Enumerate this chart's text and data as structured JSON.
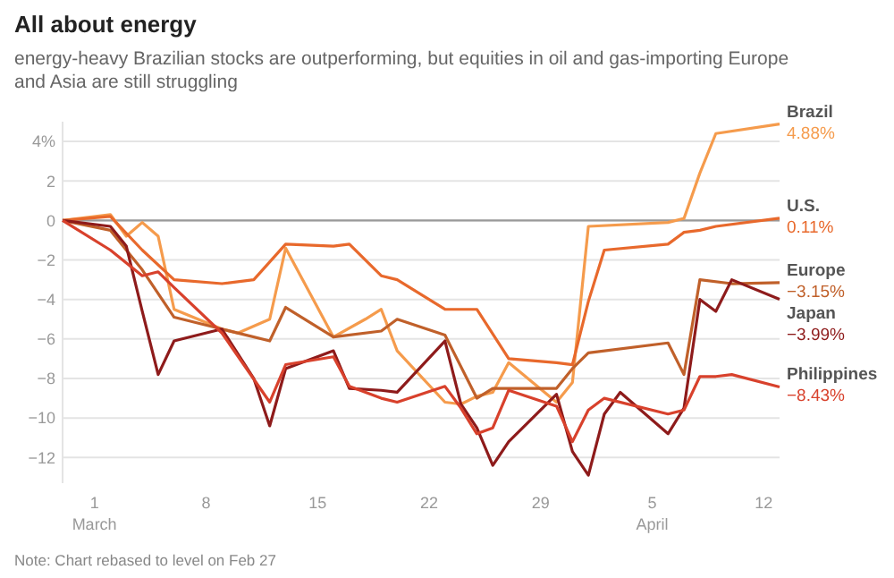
{
  "chart_data": {
    "type": "line",
    "title": "All about energy",
    "subtitle": "energy-heavy Brazilian stocks are outperforming, but equities in oil and gas-importing Europe and Asia are still struggling",
    "xlim": [
      "--02-27",
      "--04-13"
    ],
    "xticks": [
      {
        "value": "--03-01",
        "label": "1\nMarch"
      },
      {
        "value": "--03-08",
        "label": "8"
      },
      {
        "value": "--03-15",
        "label": "15"
      },
      {
        "value": "--03-22",
        "label": "22"
      },
      {
        "value": "--03-29",
        "label": "29"
      },
      {
        "value": "--04-05",
        "label": "5\nApril"
      },
      {
        "value": "--04-12",
        "label": "12"
      }
    ],
    "ylim": [
      -13.3,
      5
    ],
    "yticks": [
      {
        "value": 4,
        "label": "4%"
      },
      2,
      0,
      {
        "value": -2,
        "label": "−2"
      },
      {
        "value": -4,
        "label": "−4"
      },
      {
        "value": -6,
        "label": "−6"
      },
      {
        "value": -8,
        "label": "−8"
      },
      {
        "value": -10,
        "label": "−10"
      },
      {
        "value": -12,
        "label": "−12"
      }
    ],
    "grid": "y",
    "marker": "none",
    "line_style": "solid",
    "ref_lines": [
      {
        "axis": "y",
        "value": 0,
        "color": "#9a9a9a"
      }
    ],
    "annotations": [
      "Note: Chart rebased to level on Feb 27"
    ],
    "series": [
      {
        "name": "Brazil",
        "color": "#f59b4c",
        "x": [
          "--02-27",
          "--03-02",
          "--03-03",
          "--03-04",
          "--03-05",
          "--03-06",
          "--03-09",
          "--03-10",
          "--03-12",
          "--03-13",
          "--03-16",
          "--03-18",
          "--03-19",
          "--03-20",
          "--03-23",
          "--03-24",
          "--03-25",
          "--03-26",
          "--03-27",
          "--03-30",
          "--03-31",
          "--04-01",
          "--04-06",
          "--04-07",
          "--04-08",
          "--04-09",
          "--04-13"
        ],
        "values": [
          0,
          0.3,
          -0.8,
          -0.1,
          -0.8,
          -4.5,
          -5.5,
          -5.7,
          -5.0,
          -1.4,
          -5.9,
          -5.0,
          -4.5,
          -6.6,
          -9.2,
          -9.3,
          -8.9,
          -8.7,
          -7.2,
          -9.2,
          -8.2,
          -0.3,
          -0.1,
          0.1,
          2.4,
          4.4,
          4.88
        ],
        "value_labels": [
          null,
          null,
          null,
          null,
          null,
          null,
          null,
          null,
          null,
          null,
          null,
          null,
          null,
          null,
          null,
          null,
          null,
          null,
          null,
          null,
          null,
          null,
          null,
          null,
          null,
          null,
          "4.88%"
        ]
      },
      {
        "name": "U.S.",
        "color": "#e8692c",
        "x": [
          "--02-27",
          "--03-02",
          "--03-04",
          "--03-06",
          "--03-09",
          "--03-11",
          "--03-13",
          "--03-16",
          "--03-17",
          "--03-19",
          "--03-20",
          "--03-23",
          "--03-25",
          "--03-27",
          "--03-30",
          "--03-31",
          "--04-01",
          "--04-02",
          "--04-06",
          "--04-07",
          "--04-08",
          "--04-09",
          "--04-13"
        ],
        "values": [
          0,
          0.2,
          -1.5,
          -3.0,
          -3.2,
          -3.0,
          -1.2,
          -1.3,
          -1.2,
          -2.8,
          -3.0,
          -4.5,
          -4.5,
          -7.0,
          -7.2,
          -7.3,
          -4.1,
          -1.5,
          -1.2,
          -0.6,
          -0.5,
          -0.3,
          0.11
        ],
        "value_labels": [
          null,
          null,
          null,
          null,
          null,
          null,
          null,
          null,
          null,
          null,
          null,
          null,
          null,
          null,
          null,
          null,
          null,
          null,
          null,
          null,
          null,
          null,
          "0.11%"
        ]
      },
      {
        "name": "Europe",
        "color": "#c0602a",
        "x": [
          "--02-27",
          "--03-02",
          "--03-04",
          "--03-06",
          "--03-09",
          "--03-12",
          "--03-13",
          "--03-16",
          "--03-19",
          "--03-20",
          "--03-23",
          "--03-25",
          "--03-26",
          "--03-30",
          "--03-31",
          "--04-01",
          "--04-06",
          "--04-07",
          "--04-08",
          "--04-10",
          "--04-13"
        ],
        "values": [
          0,
          -0.5,
          -2.5,
          -4.9,
          -5.5,
          -6.1,
          -4.4,
          -5.9,
          -5.6,
          -5.0,
          -5.8,
          -9.0,
          -8.5,
          -8.5,
          -7.5,
          -6.7,
          -6.2,
          -7.8,
          -3.0,
          -3.2,
          -3.15
        ],
        "value_labels": [
          null,
          null,
          null,
          null,
          null,
          null,
          null,
          null,
          null,
          null,
          null,
          null,
          null,
          null,
          null,
          null,
          null,
          null,
          null,
          null,
          "−3.15%"
        ]
      },
      {
        "name": "Japan",
        "color": "#8e1b1b",
        "x": [
          "--02-27",
          "--03-02",
          "--03-03",
          "--03-04",
          "--03-05",
          "--03-06",
          "--03-09",
          "--03-11",
          "--03-12",
          "--03-13",
          "--03-16",
          "--03-17",
          "--03-19",
          "--03-20",
          "--03-23",
          "--03-24",
          "--03-25",
          "--03-26",
          "--03-27",
          "--03-30",
          "--03-31",
          "--04-01",
          "--04-02",
          "--04-03",
          "--04-06",
          "--04-07",
          "--04-08",
          "--04-09",
          "--04-10",
          "--04-13"
        ],
        "values": [
          0,
          -0.3,
          -1.3,
          -4.6,
          -7.8,
          -6.1,
          -5.5,
          -8.0,
          -10.4,
          -7.5,
          -6.6,
          -8.5,
          -8.6,
          -8.7,
          -6.1,
          -9.3,
          -10.5,
          -12.4,
          -11.2,
          -8.8,
          -11.7,
          -12.9,
          -9.8,
          -8.7,
          -10.8,
          -9.5,
          -4.0,
          -4.6,
          -3.0,
          -3.99
        ],
        "value_labels": [
          null,
          null,
          null,
          null,
          null,
          null,
          null,
          null,
          null,
          null,
          null,
          null,
          null,
          null,
          null,
          null,
          null,
          null,
          null,
          null,
          null,
          null,
          null,
          null,
          null,
          null,
          null,
          null,
          null,
          "−3.99%"
        ]
      },
      {
        "name": "Philippines",
        "color": "#d8412c",
        "x": [
          "--02-27",
          "--03-02",
          "--03-04",
          "--03-05",
          "--03-06",
          "--03-09",
          "--03-12",
          "--03-13",
          "--03-16",
          "--03-17",
          "--03-19",
          "--03-20",
          "--03-23",
          "--03-24",
          "--03-25",
          "--03-26",
          "--03-27",
          "--03-30",
          "--03-31",
          "--04-01",
          "--04-02",
          "--04-06",
          "--04-07",
          "--04-08",
          "--04-09",
          "--04-10",
          "--04-13"
        ],
        "values": [
          0,
          -1.5,
          -2.8,
          -2.6,
          -3.4,
          -5.7,
          -9.2,
          -7.3,
          -6.9,
          -8.4,
          -9.0,
          -9.2,
          -8.4,
          -9.5,
          -10.8,
          -10.5,
          -8.6,
          -9.4,
          -11.2,
          -9.6,
          -9.0,
          -9.8,
          -9.6,
          -7.9,
          -7.9,
          -7.8,
          -8.43
        ],
        "value_labels": [
          null,
          null,
          null,
          null,
          null,
          null,
          null,
          null,
          null,
          null,
          null,
          null,
          null,
          null,
          null,
          null,
          null,
          null,
          null,
          null,
          null,
          null,
          null,
          null,
          null,
          null,
          "−8.43%"
        ]
      }
    ]
  }
}
